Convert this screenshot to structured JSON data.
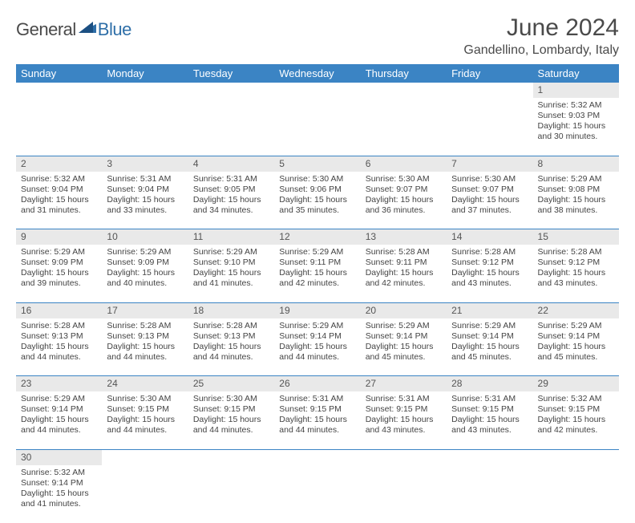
{
  "brand": {
    "part1": "General",
    "part2": "Blue"
  },
  "title": "June 2024",
  "location": "Gandellino, Lombardy, Italy",
  "colors": {
    "header_bg": "#3b84c4",
    "header_text": "#ffffff",
    "daynum_bg": "#e9e9e9",
    "cell_border": "#3b84c4",
    "body_text": "#444444",
    "title_text": "#4a4a4a",
    "brand_blue": "#2f6fa8"
  },
  "weekdays": [
    "Sunday",
    "Monday",
    "Tuesday",
    "Wednesday",
    "Thursday",
    "Friday",
    "Saturday"
  ],
  "weeks": [
    [
      null,
      null,
      null,
      null,
      null,
      null,
      {
        "day": "1",
        "sunrise": "Sunrise: 5:32 AM",
        "sunset": "Sunset: 9:03 PM",
        "d1": "Daylight: 15 hours",
        "d2": "and 30 minutes."
      }
    ],
    [
      {
        "day": "2",
        "sunrise": "Sunrise: 5:32 AM",
        "sunset": "Sunset: 9:04 PM",
        "d1": "Daylight: 15 hours",
        "d2": "and 31 minutes."
      },
      {
        "day": "3",
        "sunrise": "Sunrise: 5:31 AM",
        "sunset": "Sunset: 9:04 PM",
        "d1": "Daylight: 15 hours",
        "d2": "and 33 minutes."
      },
      {
        "day": "4",
        "sunrise": "Sunrise: 5:31 AM",
        "sunset": "Sunset: 9:05 PM",
        "d1": "Daylight: 15 hours",
        "d2": "and 34 minutes."
      },
      {
        "day": "5",
        "sunrise": "Sunrise: 5:30 AM",
        "sunset": "Sunset: 9:06 PM",
        "d1": "Daylight: 15 hours",
        "d2": "and 35 minutes."
      },
      {
        "day": "6",
        "sunrise": "Sunrise: 5:30 AM",
        "sunset": "Sunset: 9:07 PM",
        "d1": "Daylight: 15 hours",
        "d2": "and 36 minutes."
      },
      {
        "day": "7",
        "sunrise": "Sunrise: 5:30 AM",
        "sunset": "Sunset: 9:07 PM",
        "d1": "Daylight: 15 hours",
        "d2": "and 37 minutes."
      },
      {
        "day": "8",
        "sunrise": "Sunrise: 5:29 AM",
        "sunset": "Sunset: 9:08 PM",
        "d1": "Daylight: 15 hours",
        "d2": "and 38 minutes."
      }
    ],
    [
      {
        "day": "9",
        "sunrise": "Sunrise: 5:29 AM",
        "sunset": "Sunset: 9:09 PM",
        "d1": "Daylight: 15 hours",
        "d2": "and 39 minutes."
      },
      {
        "day": "10",
        "sunrise": "Sunrise: 5:29 AM",
        "sunset": "Sunset: 9:09 PM",
        "d1": "Daylight: 15 hours",
        "d2": "and 40 minutes."
      },
      {
        "day": "11",
        "sunrise": "Sunrise: 5:29 AM",
        "sunset": "Sunset: 9:10 PM",
        "d1": "Daylight: 15 hours",
        "d2": "and 41 minutes."
      },
      {
        "day": "12",
        "sunrise": "Sunrise: 5:29 AM",
        "sunset": "Sunset: 9:11 PM",
        "d1": "Daylight: 15 hours",
        "d2": "and 42 minutes."
      },
      {
        "day": "13",
        "sunrise": "Sunrise: 5:28 AM",
        "sunset": "Sunset: 9:11 PM",
        "d1": "Daylight: 15 hours",
        "d2": "and 42 minutes."
      },
      {
        "day": "14",
        "sunrise": "Sunrise: 5:28 AM",
        "sunset": "Sunset: 9:12 PM",
        "d1": "Daylight: 15 hours",
        "d2": "and 43 minutes."
      },
      {
        "day": "15",
        "sunrise": "Sunrise: 5:28 AM",
        "sunset": "Sunset: 9:12 PM",
        "d1": "Daylight: 15 hours",
        "d2": "and 43 minutes."
      }
    ],
    [
      {
        "day": "16",
        "sunrise": "Sunrise: 5:28 AM",
        "sunset": "Sunset: 9:13 PM",
        "d1": "Daylight: 15 hours",
        "d2": "and 44 minutes."
      },
      {
        "day": "17",
        "sunrise": "Sunrise: 5:28 AM",
        "sunset": "Sunset: 9:13 PM",
        "d1": "Daylight: 15 hours",
        "d2": "and 44 minutes."
      },
      {
        "day": "18",
        "sunrise": "Sunrise: 5:28 AM",
        "sunset": "Sunset: 9:13 PM",
        "d1": "Daylight: 15 hours",
        "d2": "and 44 minutes."
      },
      {
        "day": "19",
        "sunrise": "Sunrise: 5:29 AM",
        "sunset": "Sunset: 9:14 PM",
        "d1": "Daylight: 15 hours",
        "d2": "and 44 minutes."
      },
      {
        "day": "20",
        "sunrise": "Sunrise: 5:29 AM",
        "sunset": "Sunset: 9:14 PM",
        "d1": "Daylight: 15 hours",
        "d2": "and 45 minutes."
      },
      {
        "day": "21",
        "sunrise": "Sunrise: 5:29 AM",
        "sunset": "Sunset: 9:14 PM",
        "d1": "Daylight: 15 hours",
        "d2": "and 45 minutes."
      },
      {
        "day": "22",
        "sunrise": "Sunrise: 5:29 AM",
        "sunset": "Sunset: 9:14 PM",
        "d1": "Daylight: 15 hours",
        "d2": "and 45 minutes."
      }
    ],
    [
      {
        "day": "23",
        "sunrise": "Sunrise: 5:29 AM",
        "sunset": "Sunset: 9:14 PM",
        "d1": "Daylight: 15 hours",
        "d2": "and 44 minutes."
      },
      {
        "day": "24",
        "sunrise": "Sunrise: 5:30 AM",
        "sunset": "Sunset: 9:15 PM",
        "d1": "Daylight: 15 hours",
        "d2": "and 44 minutes."
      },
      {
        "day": "25",
        "sunrise": "Sunrise: 5:30 AM",
        "sunset": "Sunset: 9:15 PM",
        "d1": "Daylight: 15 hours",
        "d2": "and 44 minutes."
      },
      {
        "day": "26",
        "sunrise": "Sunrise: 5:31 AM",
        "sunset": "Sunset: 9:15 PM",
        "d1": "Daylight: 15 hours",
        "d2": "and 44 minutes."
      },
      {
        "day": "27",
        "sunrise": "Sunrise: 5:31 AM",
        "sunset": "Sunset: 9:15 PM",
        "d1": "Daylight: 15 hours",
        "d2": "and 43 minutes."
      },
      {
        "day": "28",
        "sunrise": "Sunrise: 5:31 AM",
        "sunset": "Sunset: 9:15 PM",
        "d1": "Daylight: 15 hours",
        "d2": "and 43 minutes."
      },
      {
        "day": "29",
        "sunrise": "Sunrise: 5:32 AM",
        "sunset": "Sunset: 9:15 PM",
        "d1": "Daylight: 15 hours",
        "d2": "and 42 minutes."
      }
    ],
    [
      {
        "day": "30",
        "sunrise": "Sunrise: 5:32 AM",
        "sunset": "Sunset: 9:14 PM",
        "d1": "Daylight: 15 hours",
        "d2": "and 41 minutes."
      },
      null,
      null,
      null,
      null,
      null,
      null
    ]
  ]
}
